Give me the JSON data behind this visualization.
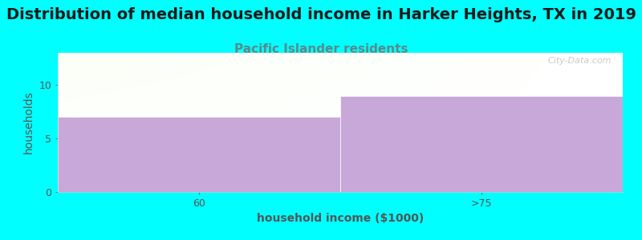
{
  "title": "Distribution of median household income in Harker Heights, TX in 2019",
  "subtitle": "Pacific Islander residents",
  "xlabel": "household income ($1000)",
  "ylabel": "households",
  "categories": [
    "60",
    ">75"
  ],
  "values": [
    7,
    9
  ],
  "bar_color": "#c8a8d8",
  "background_color": "#00ffff",
  "plot_bg_top_left": "#e8f5e8",
  "plot_bg_top_right": "#f8f8f8",
  "plot_bg_bottom": "#ffffff",
  "ylim": [
    0,
    13
  ],
  "yticks": [
    0,
    5,
    10
  ],
  "title_color": "#1a1a1a",
  "subtitle_color": "#5a8a8a",
  "axis_color": "#555555",
  "title_fontsize": 14,
  "subtitle_fontsize": 11,
  "label_fontsize": 10,
  "tick_fontsize": 9,
  "watermark": "City-Data.com"
}
